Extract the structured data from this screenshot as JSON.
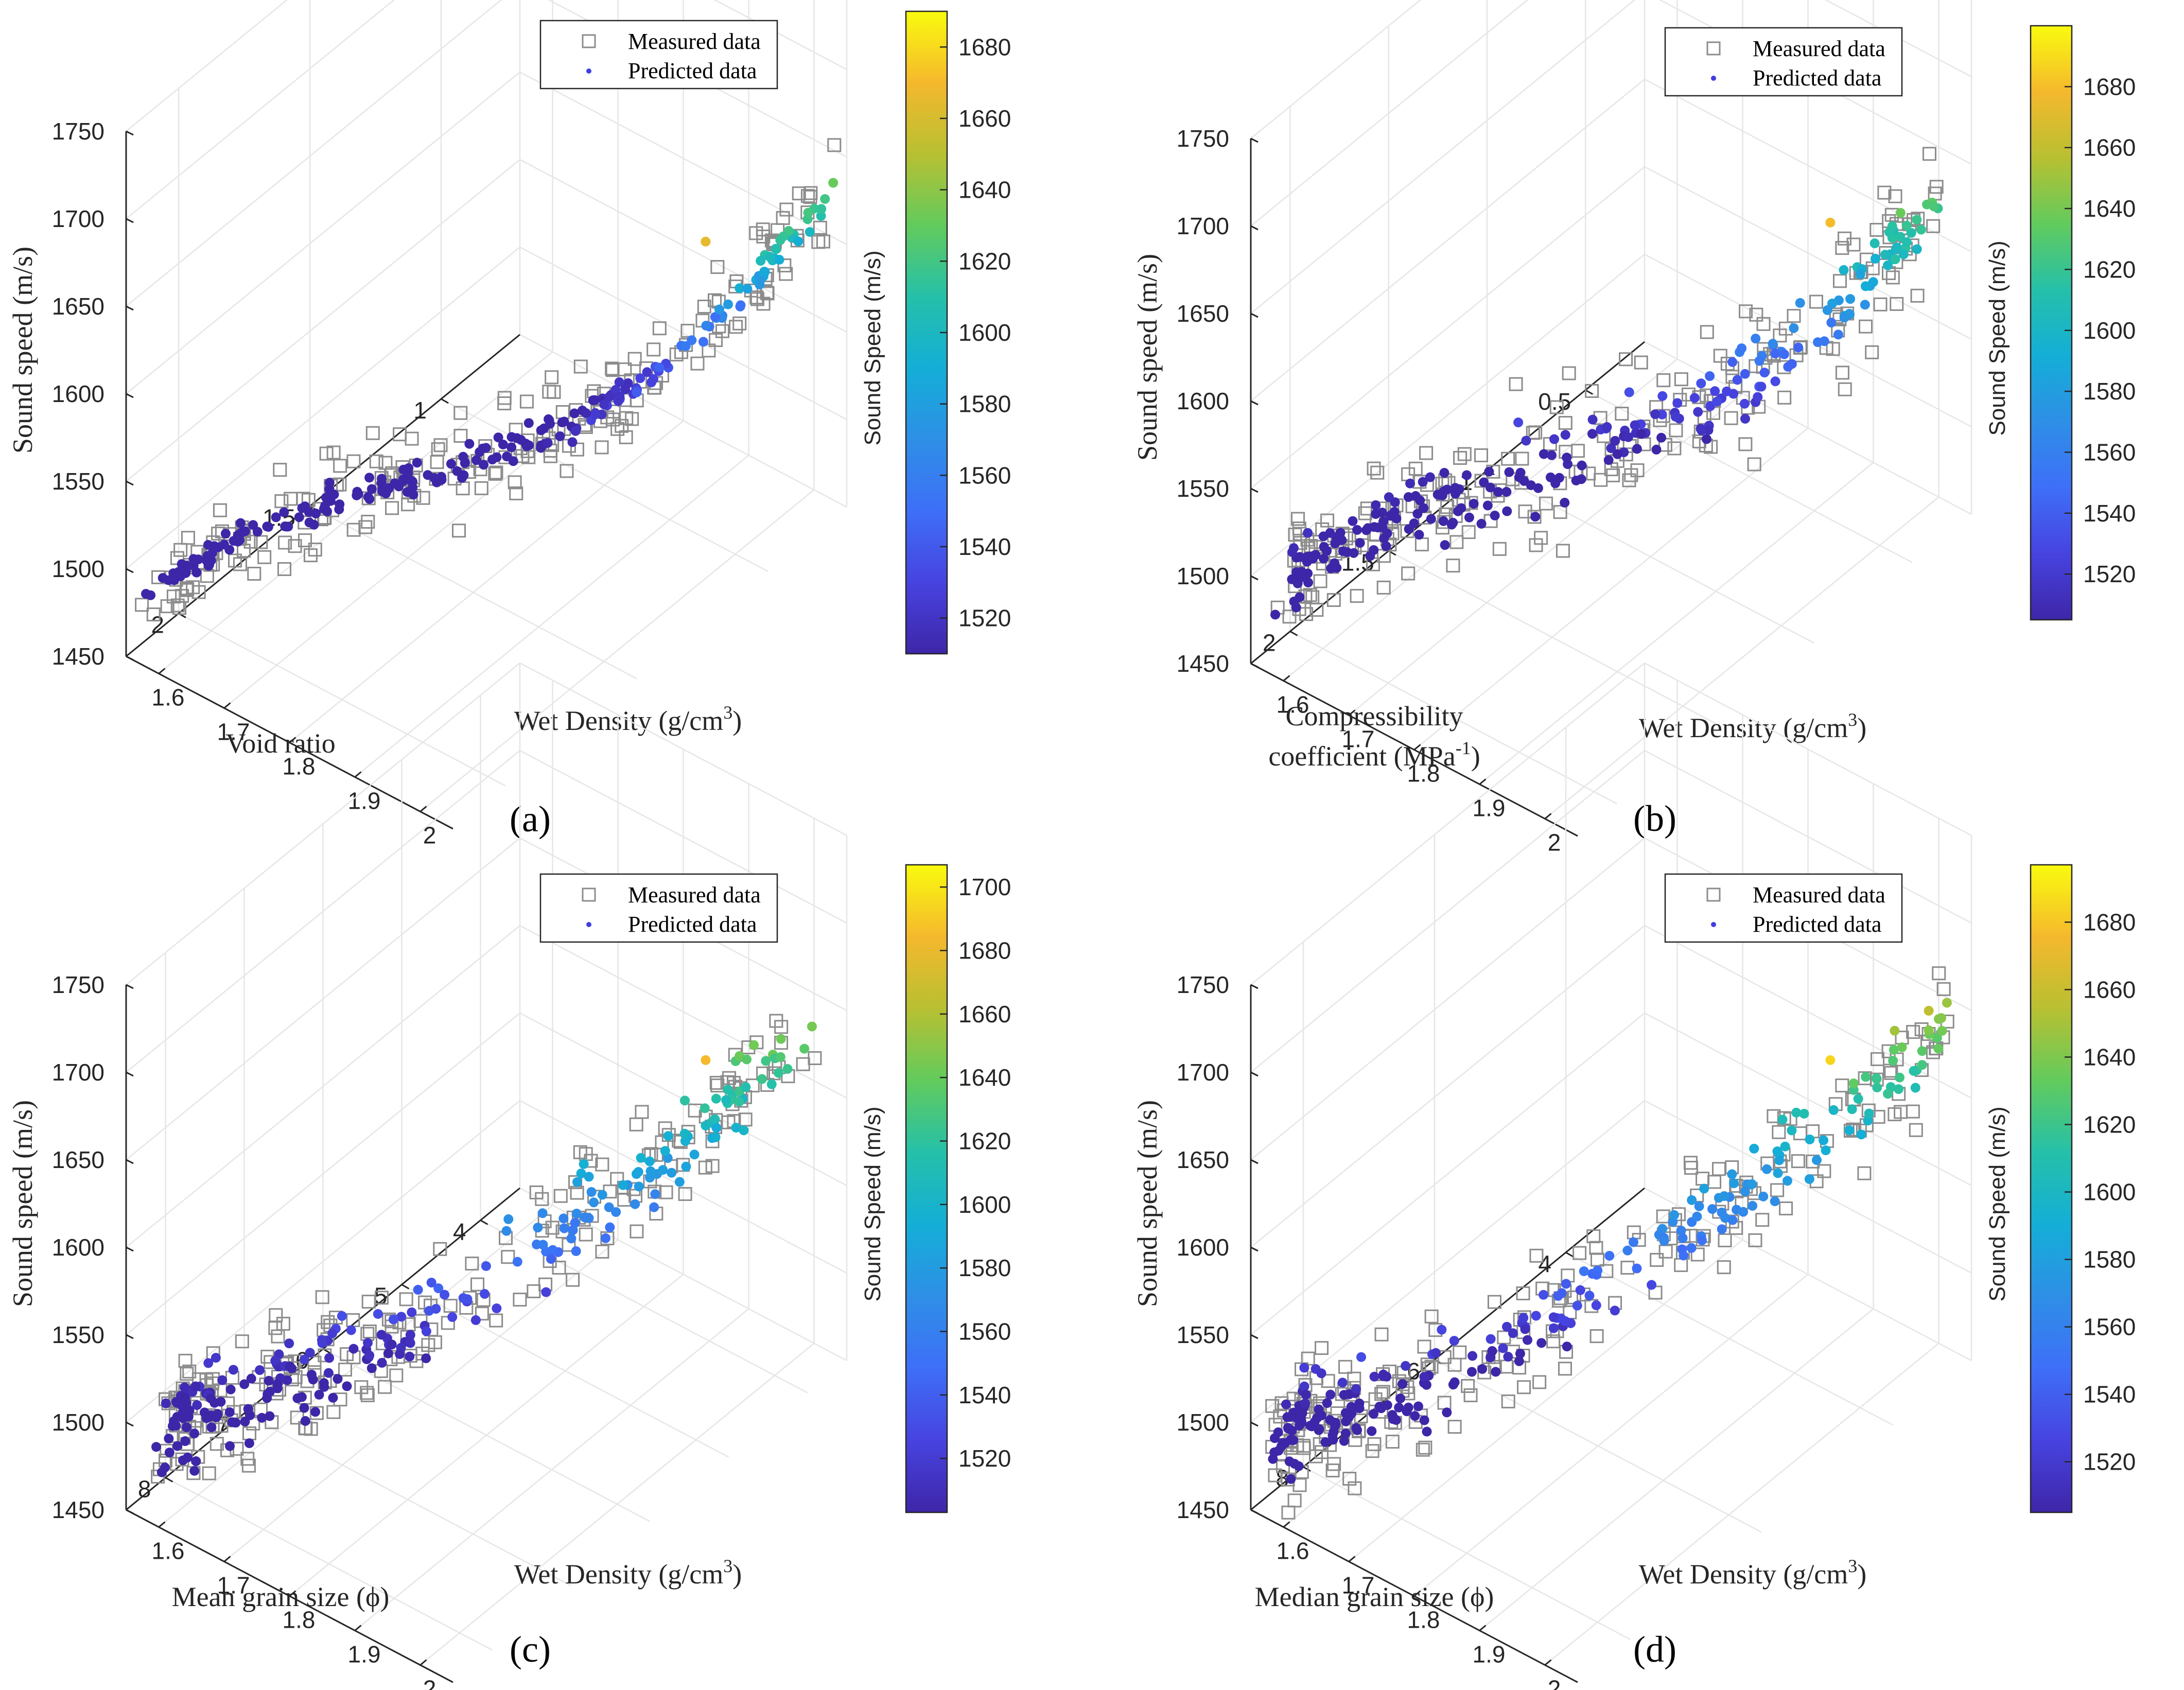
{
  "figure": {
    "colormap": [
      "#3e26a8",
      "#4743e0",
      "#3e6ff8",
      "#2e8fe6",
      "#14aed7",
      "#25c0a9",
      "#62cb5d",
      "#b8c032",
      "#f5b82d",
      "#f9fb0e"
    ],
    "legend": {
      "measured": "Measured data",
      "predicted": "Predicted data"
    },
    "colorbar_label": "Sound Speed (m/s)",
    "y_label": "Sound speed (m/s)",
    "wet_density_label": "Wet Density (g/cm",
    "wet_density_sup": "3",
    "wet_density_close": ")",
    "measured_color": "#8c8c8c"
  },
  "chart_data": [
    {
      "type": "scatter",
      "panel_label": "(a)",
      "title": "",
      "zlabel": "Sound speed (m/s)",
      "xlabel": "Wet Density (g/cm3)",
      "ylabel_lines": [
        "Void ratio"
      ],
      "ylabel_sup": "",
      "xticks": [
        "1.6",
        "1.7",
        "1.8",
        "1.9",
        "2"
      ],
      "yticks": [
        "1",
        "1.5",
        "2"
      ],
      "zticks": [
        "1450",
        "1500",
        "1550",
        "1600",
        "1650",
        "1700",
        "1750"
      ],
      "xlim": [
        1.55,
        2.05
      ],
      "ylim": [
        0.7,
        2.2
      ],
      "zlim": [
        1450,
        1750
      ],
      "colorbar": {
        "ticks": [
          "1520",
          "1540",
          "1560",
          "1580",
          "1600",
          "1620",
          "1640",
          "1660",
          "1680"
        ],
        "range": [
          1510,
          1690
        ]
      },
      "series": [
        {
          "name": "Measured data",
          "marker": "square"
        },
        {
          "name": "Predicted data",
          "marker": "dot"
        }
      ],
      "trend": {
        "seed": 11,
        "n": 230,
        "ymode": "curve",
        "yrange": [
          0.75,
          2.15
        ],
        "zbase": 1490,
        "zamp": 140,
        "zpow": 3.0,
        "mscatter": 25,
        "pscatter": 4,
        "cmin": 1510,
        "cmax": 1690,
        "hi": 1650
      }
    },
    {
      "type": "scatter",
      "panel_label": "(b)",
      "title": "",
      "zlabel": "Sound speed (m/s)",
      "xlabel": "Wet Density (g/cm3)",
      "ylabel_lines": [
        "Compressibility",
        "coefficient (MPa"
      ],
      "ylabel_sup": "-1",
      "xticks": [
        "1.6",
        "1.7",
        "1.8",
        "1.9",
        "2"
      ],
      "yticks": [
        "0.5",
        "1",
        "1.5",
        "2"
      ],
      "zticks": [
        "1450",
        "1500",
        "1550",
        "1600",
        "1650",
        "1700",
        "1750"
      ],
      "xlim": [
        1.55,
        2.05
      ],
      "ylim": [
        0.2,
        2.2
      ],
      "zlim": [
        1450,
        1750
      ],
      "colorbar": {
        "ticks": [
          "1520",
          "1540",
          "1560",
          "1580",
          "1600",
          "1620",
          "1640",
          "1660",
          "1680"
        ],
        "range": [
          1505,
          1700
        ]
      },
      "series": [
        {
          "name": "Measured data",
          "marker": "square"
        },
        {
          "name": "Predicted data",
          "marker": "dot"
        }
      ],
      "trend": {
        "seed": 23,
        "n": 240,
        "ymode": "curve",
        "yrange": [
          0.3,
          2.1
        ],
        "zbase": 1495,
        "zamp": 145,
        "zpow": 2.6,
        "mscatter": 30,
        "pscatter": 20,
        "cmin": 1505,
        "cmax": 1700,
        "hi": 1665
      }
    },
    {
      "type": "scatter",
      "panel_label": "(c)",
      "title": "",
      "zlabel": "Sound speed (m/s)",
      "xlabel": "Wet Density (g/cm3)",
      "ylabel_lines": [
        "Mean grain size (ϕ)"
      ],
      "ylabel_sup": "",
      "xticks": [
        "1.6",
        "1.7",
        "1.8",
        "1.9",
        "2"
      ],
      "yticks": [
        "4",
        "5",
        "6",
        "7",
        "8"
      ],
      "zticks": [
        "1450",
        "1500",
        "1550",
        "1600",
        "1650",
        "1700",
        "1750"
      ],
      "xlim": [
        1.55,
        2.05
      ],
      "ylim": [
        3.5,
        8.5
      ],
      "zlim": [
        1450,
        1750
      ],
      "colorbar": {
        "ticks": [
          "1520",
          "1540",
          "1560",
          "1580",
          "1600",
          "1620",
          "1640",
          "1660",
          "1680",
          "1700"
        ],
        "range": [
          1503,
          1707
        ]
      },
      "series": [
        {
          "name": "Measured data",
          "marker": "square"
        },
        {
          "name": "Predicted data",
          "marker": "dot"
        }
      ],
      "trend": {
        "seed": 37,
        "n": 240,
        "ymode": "linear",
        "yrange": [
          3.8,
          8.1
        ],
        "zbase": 1495,
        "zamp": 150,
        "zpow": 1.8,
        "mscatter": 28,
        "pscatter": 22,
        "cmin": 1503,
        "cmax": 1707,
        "hi": 1670
      }
    },
    {
      "type": "scatter",
      "panel_label": "(d)",
      "title": "",
      "zlabel": "Sound speed (m/s)",
      "xlabel": "Wet Density (g/cm3)",
      "ylabel_lines": [
        "Median grain size (ϕ)"
      ],
      "ylabel_sup": "",
      "xticks": [
        "1.6",
        "1.7",
        "1.8",
        "1.9",
        "2"
      ],
      "yticks": [
        "4",
        "6",
        "8"
      ],
      "zticks": [
        "1450",
        "1500",
        "1550",
        "1600",
        "1650",
        "1700",
        "1750"
      ],
      "xlim": [
        1.55,
        2.05
      ],
      "ylim": [
        2.8,
        8.8
      ],
      "zlim": [
        1450,
        1750
      ],
      "colorbar": {
        "ticks": [
          "1520",
          "1540",
          "1560",
          "1580",
          "1600",
          "1620",
          "1640",
          "1660",
          "1680"
        ],
        "range": [
          1505,
          1697
        ]
      },
      "series": [
        {
          "name": "Measured data",
          "marker": "square"
        },
        {
          "name": "Predicted data",
          "marker": "dot"
        }
      ],
      "trend": {
        "seed": 53,
        "n": 240,
        "ymode": "linear",
        "yrange": [
          3.0,
          8.5
        ],
        "zbase": 1495,
        "zamp": 150,
        "zpow": 1.7,
        "mscatter": 28,
        "pscatter": 22,
        "cmin": 1505,
        "cmax": 1697,
        "hi": 1670
      }
    }
  ]
}
